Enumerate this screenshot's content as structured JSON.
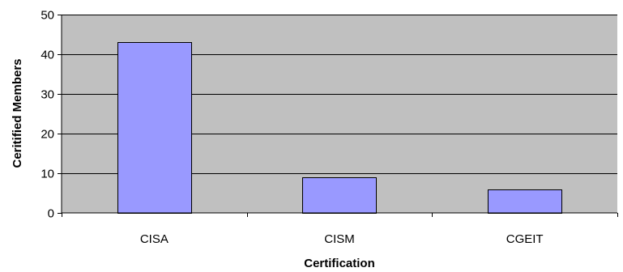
{
  "chart_data": {
    "type": "bar",
    "categories": [
      "CISA",
      "CISM",
      "CGEIT"
    ],
    "values": [
      43,
      9,
      6
    ],
    "title": "",
    "xlabel": "Certification",
    "ylabel": "Ceritified Members",
    "ylim": [
      0,
      50
    ],
    "yticks": [
      0,
      10,
      20,
      30,
      40,
      50
    ],
    "grid": true,
    "legend": "none",
    "colors": {
      "plot_background": "#c0c0c0",
      "bar_fill": "#9999ff",
      "bar_stroke": "#000000",
      "gridline": "#000000"
    }
  }
}
